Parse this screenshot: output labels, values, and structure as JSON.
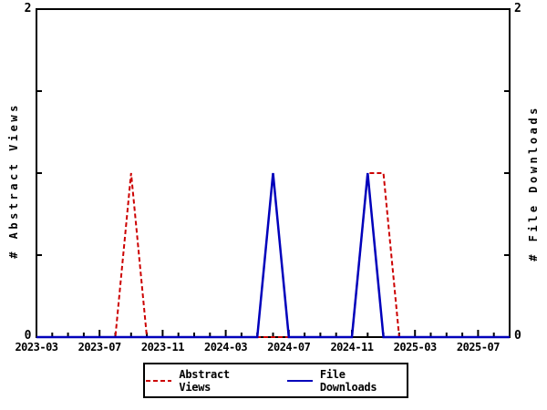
{
  "chart": {
    "background": "#ffffff",
    "axis_color": "#000000",
    "y_tick_top_left": "2",
    "y_tick_bottom_left": "0",
    "y_tick_top_right": "2",
    "y_tick_bottom_right": "0"
  },
  "chart_data": {
    "type": "line",
    "title": "",
    "xlabel": "",
    "ylabel_left": "# Abstract Views",
    "ylabel_right": "# File Downloads",
    "ylim": [
      0,
      2
    ],
    "grid": false,
    "legend_position": "bottom",
    "x": [
      "2023-03",
      "2023-04",
      "2023-05",
      "2023-06",
      "2023-07",
      "2023-08",
      "2023-09",
      "2023-10",
      "2023-11",
      "2023-12",
      "2024-01",
      "2024-02",
      "2024-03",
      "2024-04",
      "2024-05",
      "2024-06",
      "2024-07",
      "2024-08",
      "2024-09",
      "2024-10",
      "2024-11",
      "2024-12",
      "2025-01",
      "2025-02",
      "2025-03",
      "2025-04",
      "2025-05",
      "2025-06",
      "2025-07",
      "2025-08",
      "2025-09"
    ],
    "x_major_tick_labels": [
      "2023-03",
      "2023-07",
      "2023-11",
      "2024-03",
      "2024-07",
      "2024-11",
      "2025-03",
      "2025-07"
    ],
    "y_tick_labels": [
      "0",
      "2"
    ],
    "series": [
      {
        "name": "Abstract Views",
        "axis": "left",
        "color": "#cc0000",
        "line_style": "dashed",
        "values": [
          0,
          0,
          0,
          0,
          0,
          0,
          1,
          0,
          0,
          0,
          0,
          0,
          0,
          0,
          0,
          0,
          0,
          0,
          0,
          0,
          0,
          1,
          1,
          0,
          0,
          0,
          0,
          0,
          0,
          0,
          0
        ]
      },
      {
        "name": "File Downloads",
        "axis": "right",
        "color": "#0000bb",
        "line_style": "solid",
        "values": [
          0,
          0,
          0,
          0,
          0,
          0,
          0,
          0,
          0,
          0,
          0,
          0,
          0,
          0,
          0,
          1,
          0,
          0,
          0,
          0,
          0,
          1,
          0,
          0,
          0,
          0,
          0,
          0,
          0,
          0,
          0
        ]
      }
    ]
  }
}
